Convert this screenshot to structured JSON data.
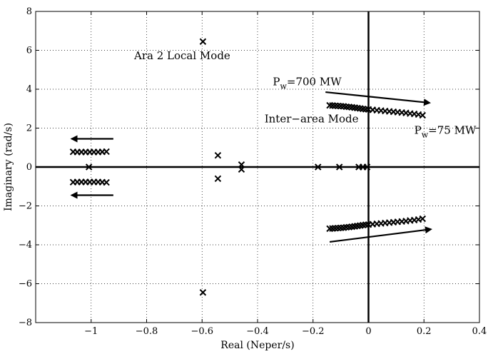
{
  "chart_data": {
    "type": "scatter",
    "title": "",
    "xlabel": "Real (Neper/s)",
    "ylabel": "Imaginary (rad/s)",
    "xlim": [
      -1.2,
      0.4
    ],
    "ylim": [
      -8,
      8
    ],
    "grid": true,
    "x_ticks": [
      -1,
      -0.8,
      -0.6,
      -0.4,
      -0.2,
      0,
      0.2,
      0.4
    ],
    "x_tick_labels": [
      "−1",
      "−0.8",
      "−0.6",
      "−0.4",
      "−0.2",
      "0",
      "0.2",
      "0.4"
    ],
    "y_ticks": [
      -8,
      -6,
      -4,
      -2,
      0,
      2,
      4,
      6,
      8
    ],
    "y_tick_labels": [
      "−8",
      "−6",
      "−4",
      "−2",
      "0",
      "2",
      "4",
      "6",
      "8"
    ],
    "marker": "x",
    "series": [
      {
        "points": [
          [
            -1.065,
            0.78
          ],
          [
            -1.05,
            0.77
          ],
          [
            -1.035,
            0.77
          ],
          [
            -1.02,
            0.77
          ],
          [
            -1.005,
            0.77
          ],
          [
            -0.99,
            0.77
          ],
          [
            -0.975,
            0.77
          ],
          [
            -0.96,
            0.78
          ],
          [
            -0.945,
            0.79
          ],
          [
            -1.065,
            -0.78
          ],
          [
            -1.05,
            -0.77
          ],
          [
            -1.035,
            -0.77
          ],
          [
            -1.02,
            -0.77
          ],
          [
            -1.005,
            -0.77
          ],
          [
            -0.99,
            -0.77
          ],
          [
            -0.975,
            -0.77
          ],
          [
            -0.96,
            -0.78
          ],
          [
            -0.945,
            -0.79
          ],
          [
            -1.008,
            0.0
          ],
          [
            -0.597,
            6.45
          ],
          [
            -0.597,
            -6.45
          ],
          [
            -0.543,
            0.6
          ],
          [
            -0.543,
            -0.6
          ],
          [
            -0.458,
            0.12
          ],
          [
            -0.458,
            -0.12
          ],
          [
            -0.182,
            0.0
          ],
          [
            -0.105,
            0.0
          ],
          [
            -0.035,
            0.0
          ],
          [
            -0.02,
            0.0
          ],
          [
            -0.005,
            0.0
          ],
          [
            -0.14,
            3.17
          ],
          [
            -0.13,
            3.16
          ],
          [
            -0.12,
            3.15
          ],
          [
            -0.11,
            3.14
          ],
          [
            -0.1,
            3.13
          ],
          [
            -0.09,
            3.12
          ],
          [
            -0.08,
            3.1
          ],
          [
            -0.07,
            3.09
          ],
          [
            -0.06,
            3.07
          ],
          [
            -0.05,
            3.05
          ],
          [
            -0.04,
            3.03
          ],
          [
            -0.03,
            3.01
          ],
          [
            -0.02,
            2.99
          ],
          [
            -0.01,
            2.97
          ],
          [
            0.0,
            2.96
          ],
          [
            0.015,
            2.94
          ],
          [
            0.03,
            2.92
          ],
          [
            0.045,
            2.9
          ],
          [
            0.06,
            2.88
          ],
          [
            0.075,
            2.86
          ],
          [
            0.09,
            2.84
          ],
          [
            0.105,
            2.82
          ],
          [
            0.12,
            2.8
          ],
          [
            0.135,
            2.78
          ],
          [
            0.15,
            2.75
          ],
          [
            0.165,
            2.73
          ],
          [
            0.18,
            2.7
          ],
          [
            0.195,
            2.66
          ],
          [
            -0.14,
            -3.17
          ],
          [
            -0.13,
            -3.16
          ],
          [
            -0.12,
            -3.15
          ],
          [
            -0.11,
            -3.14
          ],
          [
            -0.1,
            -3.13
          ],
          [
            -0.09,
            -3.12
          ],
          [
            -0.08,
            -3.1
          ],
          [
            -0.07,
            -3.09
          ],
          [
            -0.06,
            -3.07
          ],
          [
            -0.05,
            -3.05
          ],
          [
            -0.04,
            -3.03
          ],
          [
            -0.03,
            -3.01
          ],
          [
            -0.02,
            -2.99
          ],
          [
            -0.01,
            -2.97
          ],
          [
            0.0,
            -2.96
          ],
          [
            0.015,
            -2.94
          ],
          [
            0.03,
            -2.92
          ],
          [
            0.045,
            -2.9
          ],
          [
            0.06,
            -2.88
          ],
          [
            0.075,
            -2.86
          ],
          [
            0.09,
            -2.84
          ],
          [
            0.105,
            -2.82
          ],
          [
            0.12,
            -2.8
          ],
          [
            0.135,
            -2.78
          ],
          [
            0.15,
            -2.75
          ],
          [
            0.165,
            -2.73
          ],
          [
            0.18,
            -2.7
          ],
          [
            0.195,
            -2.66
          ]
        ]
      }
    ],
    "reference_lines": {
      "x": 0,
      "y": 0
    },
    "arrows": [
      {
        "from": [
          -0.92,
          1.45
        ],
        "to": [
          -1.07,
          1.45
        ]
      },
      {
        "from": [
          -0.92,
          -1.45
        ],
        "to": [
          -1.07,
          -1.45
        ]
      },
      {
        "from": [
          -0.155,
          3.85
        ],
        "to": [
          0.22,
          3.3
        ]
      },
      {
        "from": [
          -0.14,
          -3.85
        ],
        "to": [
          0.225,
          -3.2
        ]
      }
    ],
    "annotations": [
      {
        "text": "Ara 2 Local Mode",
        "x": -0.845,
        "y": 5.55
      },
      {
        "text": "Inter−area Mode",
        "x": -0.375,
        "y": 2.3
      },
      {
        "base": "P",
        "sub": "w",
        "rest": "=700 MW",
        "x": -0.345,
        "y": 4.2
      },
      {
        "base": "P",
        "sub": "w",
        "rest": "=75 MW",
        "x": 0.165,
        "y": 1.7
      }
    ]
  }
}
